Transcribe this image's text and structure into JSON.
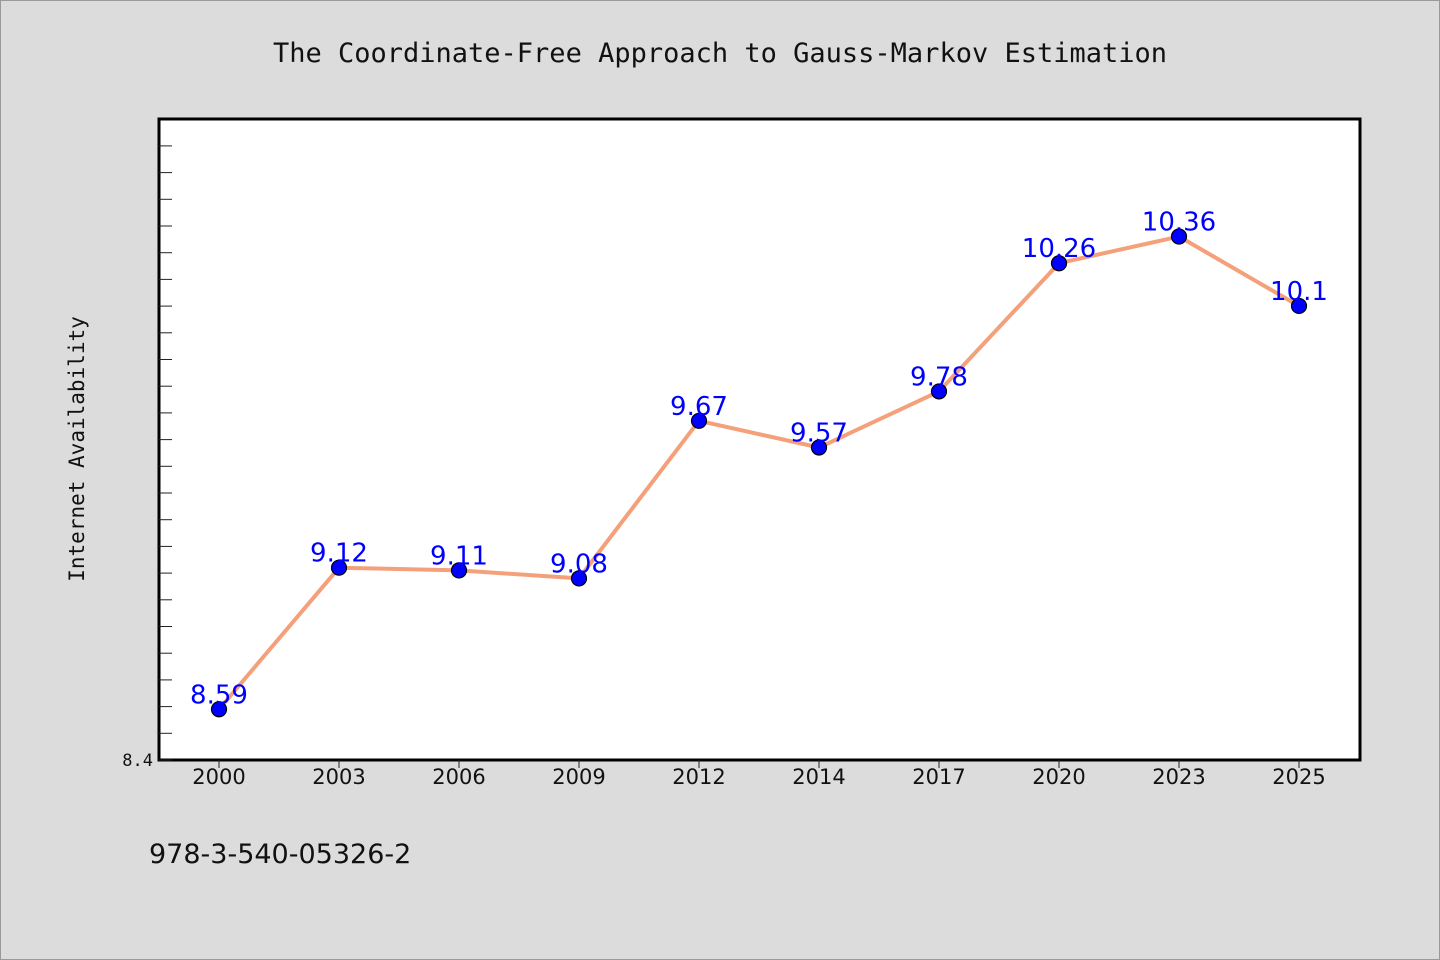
{
  "chart_data": {
    "type": "line",
    "title": "The Coordinate-Free Approach to Gauss-Markov Estimation",
    "xlabel": "",
    "ylabel": "Internet Availability",
    "categories": [
      "2000",
      "2003",
      "2006",
      "2009",
      "2012",
      "2014",
      "2017",
      "2020",
      "2023",
      "2025"
    ],
    "series": [
      {
        "values": [
          8.59,
          9.12,
          9.11,
          9.08,
          9.67,
          9.57,
          9.78,
          10.26,
          10.36,
          10.1
        ]
      }
    ],
    "data_labels": [
      "8.59",
      "9.12",
      "9.11",
      "9.08",
      "9.67",
      "9.57",
      "9.78",
      "10.26",
      "10.36",
      "10.1"
    ],
    "ylim": [
      8.4,
      10.8
    ],
    "y_tick_labels": [
      "8.4"
    ],
    "grid": false,
    "legend": "none",
    "colors": {
      "line": "#f4a07a",
      "marker": "#0000ff",
      "data_label": "#0000ff",
      "plot_background": "#ffffff",
      "figure_background": "#dcdcdc"
    }
  },
  "footer": {
    "isbn": "978-3-540-05326-2"
  }
}
